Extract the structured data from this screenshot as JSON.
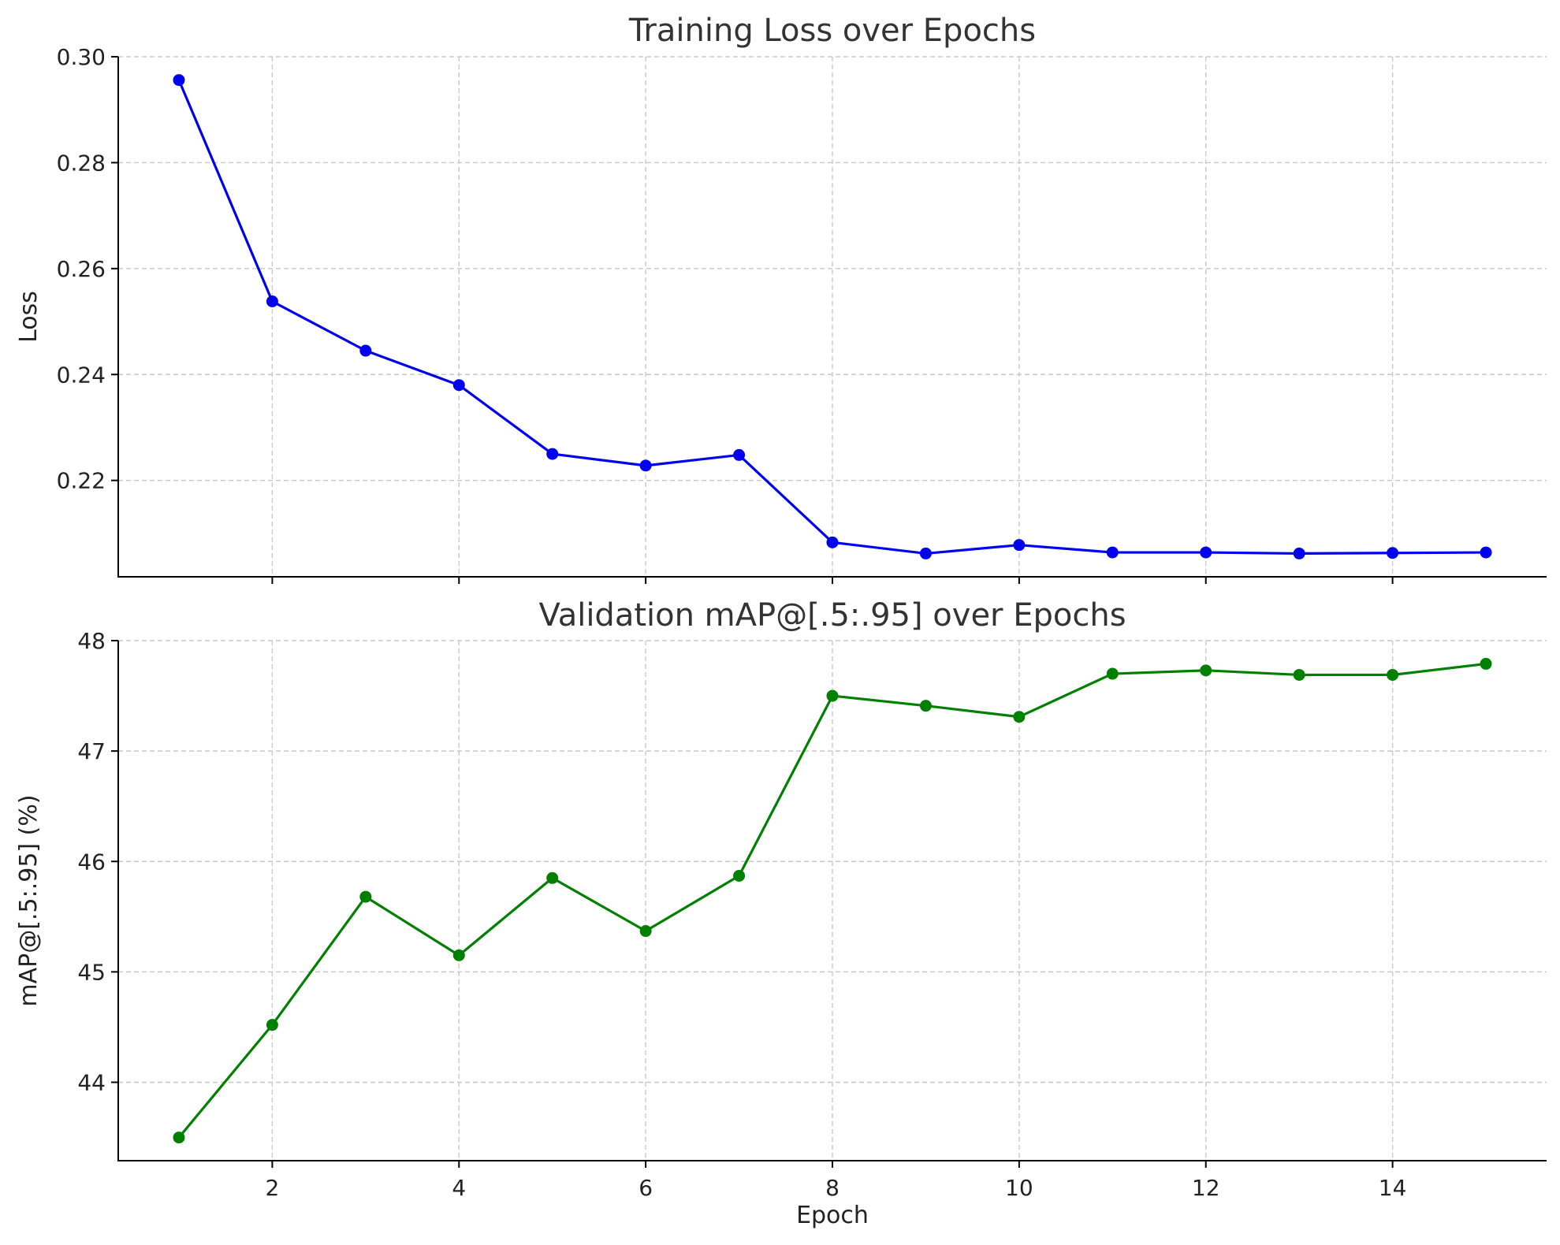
{
  "chart_data": [
    {
      "type": "line",
      "title": "Training Loss over Epochs",
      "xlabel": "",
      "ylabel": "Loss",
      "x": [
        1,
        2,
        3,
        4,
        5,
        6,
        7,
        8,
        9,
        10,
        11,
        12,
        13,
        14,
        15
      ],
      "xlim": [
        0.35,
        15.65
      ],
      "ylim": [
        0.2018,
        0.3
      ],
      "xticks": [
        2,
        4,
        6,
        8,
        10,
        12,
        14
      ],
      "yticks": [
        0.22,
        0.24,
        0.26,
        0.28,
        0.3
      ],
      "ytick_labels": [
        "0.22",
        "0.24",
        "0.26",
        "0.28",
        "0.30"
      ],
      "show_xtick_labels": false,
      "grid": true,
      "series": [
        {
          "color": "#0000ee",
          "values": [
            0.2956,
            0.2538,
            0.2445,
            0.238,
            0.225,
            0.2228,
            0.2248,
            0.2083,
            0.2062,
            0.2078,
            0.2064,
            0.2064,
            0.2062,
            0.2063,
            0.2064
          ]
        }
      ]
    },
    {
      "type": "line",
      "title": "Validation mAP@[.5:.95] over Epochs",
      "xlabel": "Epoch",
      "ylabel": "mAP@[.5:.95] (%)",
      "x": [
        1,
        2,
        3,
        4,
        5,
        6,
        7,
        8,
        9,
        10,
        11,
        12,
        13,
        14,
        15
      ],
      "xlim": [
        0.35,
        15.65
      ],
      "ylim": [
        43.29,
        48.0
      ],
      "xticks": [
        2,
        4,
        6,
        8,
        10,
        12,
        14
      ],
      "xtick_labels": [
        "2",
        "4",
        "6",
        "8",
        "10",
        "12",
        "14"
      ],
      "yticks": [
        44,
        45,
        46,
        47,
        48
      ],
      "ytick_labels": [
        "44",
        "45",
        "46",
        "47",
        "48"
      ],
      "show_xtick_labels": true,
      "grid": true,
      "series": [
        {
          "color": "#008000",
          "values": [
            43.5,
            44.52,
            45.68,
            45.15,
            45.85,
            45.37,
            45.87,
            47.5,
            47.41,
            47.31,
            47.7,
            47.73,
            47.69,
            47.69,
            47.79
          ]
        }
      ]
    }
  ]
}
